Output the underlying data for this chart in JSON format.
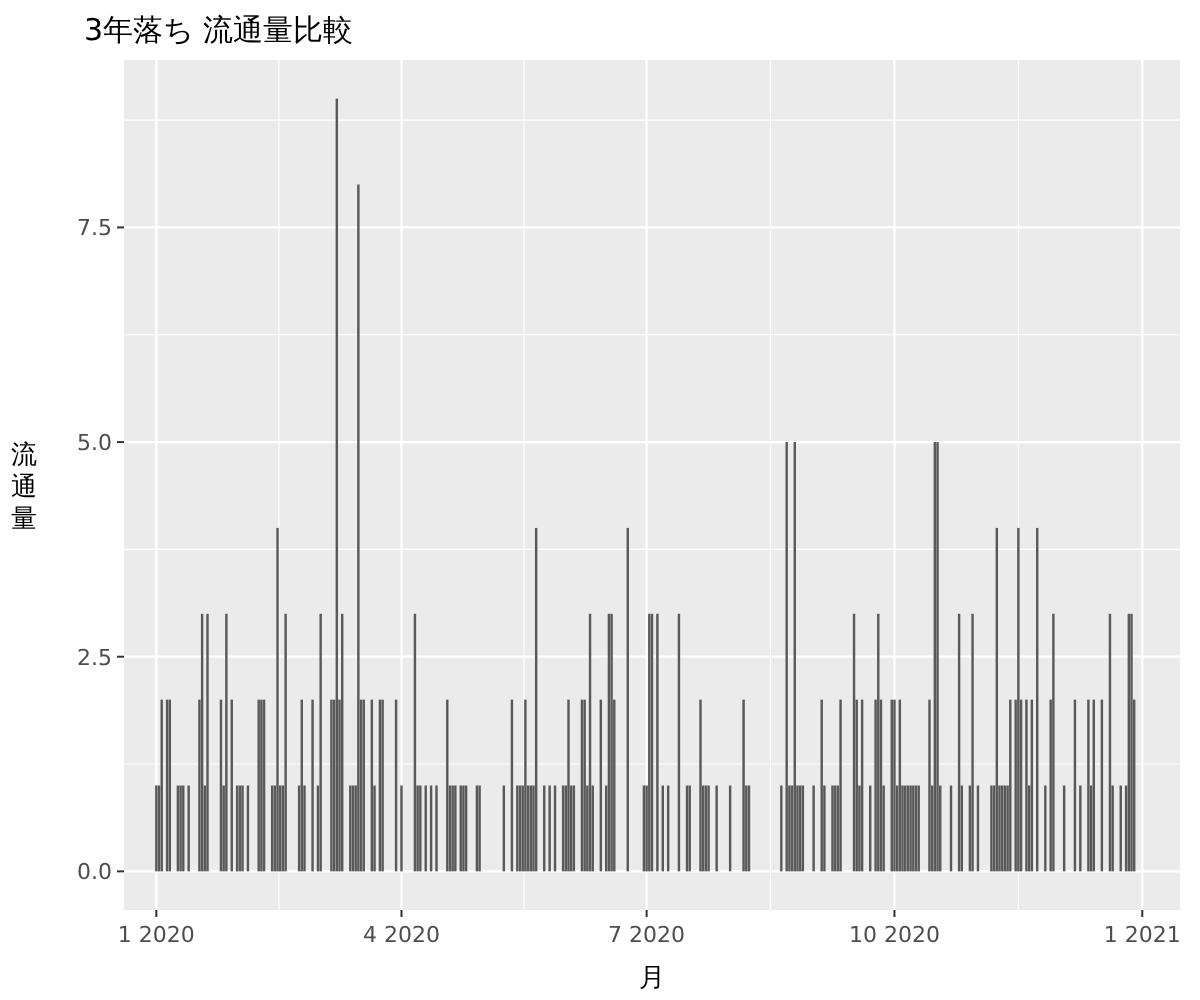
{
  "chart_data": {
    "type": "bar",
    "title": "3年落ち 流通量比較",
    "xlabel": "月",
    "ylabel": "流通量",
    "color": "#595959",
    "x": [
      "2020-01-01",
      "2020-01-02",
      "2020-01-03",
      "2020-01-05",
      "2020-01-06",
      "2020-01-09",
      "2020-01-10",
      "2020-01-11",
      "2020-01-13",
      "2020-01-17",
      "2020-01-18",
      "2020-01-19",
      "2020-01-20",
      "2020-01-25",
      "2020-01-26",
      "2020-01-27",
      "2020-01-29",
      "2020-01-31",
      "2020-02-01",
      "2020-02-02",
      "2020-02-04",
      "2020-02-08",
      "2020-02-09",
      "2020-02-10",
      "2020-02-13",
      "2020-02-14",
      "2020-02-15",
      "2020-02-16",
      "2020-02-17",
      "2020-02-18",
      "2020-02-23",
      "2020-02-24",
      "2020-02-25",
      "2020-02-28",
      "2020-03-01",
      "2020-03-02",
      "2020-03-06",
      "2020-03-07",
      "2020-03-08",
      "2020-03-09",
      "2020-03-10",
      "2020-03-13",
      "2020-03-14",
      "2020-03-15",
      "2020-03-16",
      "2020-03-17",
      "2020-03-18",
      "2020-03-21",
      "2020-03-22",
      "2020-03-24",
      "2020-03-25",
      "2020-03-30",
      "2020-04-01",
      "2020-04-06",
      "2020-04-07",
      "2020-04-08",
      "2020-04-10",
      "2020-04-12",
      "2020-04-14",
      "2020-04-18",
      "2020-04-19",
      "2020-04-20",
      "2020-04-21",
      "2020-04-23",
      "2020-04-24",
      "2020-04-25",
      "2020-04-29",
      "2020-04-30",
      "2020-05-09",
      "2020-05-12",
      "2020-05-14",
      "2020-05-15",
      "2020-05-16",
      "2020-05-17",
      "2020-05-18",
      "2020-05-19",
      "2020-05-20",
      "2020-05-21",
      "2020-05-24",
      "2020-05-26",
      "2020-05-28",
      "2020-05-31",
      "2020-06-01",
      "2020-06-02",
      "2020-06-03",
      "2020-06-04",
      "2020-06-07",
      "2020-06-08",
      "2020-06-09",
      "2020-06-10",
      "2020-06-11",
      "2020-06-14",
      "2020-06-16",
      "2020-06-17",
      "2020-06-18",
      "2020-06-19",
      "2020-06-24",
      "2020-06-30",
      "2020-07-01",
      "2020-07-02",
      "2020-07-03",
      "2020-07-05",
      "2020-07-07",
      "2020-07-09",
      "2020-07-13",
      "2020-07-16",
      "2020-07-17",
      "2020-07-21",
      "2020-07-22",
      "2020-07-23",
      "2020-07-24",
      "2020-07-27",
      "2020-08-01",
      "2020-08-06",
      "2020-08-07",
      "2020-08-08",
      "2020-08-20",
      "2020-08-22",
      "2020-08-23",
      "2020-08-24",
      "2020-08-25",
      "2020-08-26",
      "2020-08-27",
      "2020-08-28",
      "2020-09-01",
      "2020-09-04",
      "2020-09-05",
      "2020-09-08",
      "2020-09-09",
      "2020-09-10",
      "2020-09-11",
      "2020-09-16",
      "2020-09-17",
      "2020-09-18",
      "2020-09-19",
      "2020-09-22",
      "2020-09-24",
      "2020-09-25",
      "2020-09-26",
      "2020-09-27",
      "2020-09-30",
      "2020-10-01",
      "2020-10-02",
      "2020-10-03",
      "2020-10-04",
      "2020-10-05",
      "2020-10-06",
      "2020-10-07",
      "2020-10-08",
      "2020-10-09",
      "2020-10-10",
      "2020-10-14",
      "2020-10-15",
      "2020-10-16",
      "2020-10-17",
      "2020-10-18",
      "2020-10-22",
      "2020-10-25",
      "2020-10-26",
      "2020-10-29",
      "2020-10-30",
      "2020-11-01",
      "2020-11-06",
      "2020-11-07",
      "2020-11-08",
      "2020-11-09",
      "2020-11-10",
      "2020-11-11",
      "2020-11-12",
      "2020-11-13",
      "2020-11-15",
      "2020-11-16",
      "2020-11-17",
      "2020-11-19",
      "2020-11-20",
      "2020-11-21",
      "2020-11-23",
      "2020-11-26",
      "2020-11-28",
      "2020-11-29",
      "2020-12-03",
      "2020-12-07",
      "2020-12-09",
      "2020-12-12",
      "2020-12-13",
      "2020-12-14",
      "2020-12-17",
      "2020-12-20",
      "2020-12-21",
      "2020-12-24",
      "2020-12-26",
      "2020-12-27",
      "2020-12-28",
      "2020-12-29"
    ],
    "values": [
      1,
      1,
      2,
      2,
      2,
      1,
      1,
      1,
      1,
      2,
      3,
      1,
      3,
      2,
      1,
      3,
      2,
      1,
      1,
      1,
      1,
      2,
      2,
      2,
      1,
      1,
      4,
      1,
      1,
      3,
      1,
      2,
      1,
      2,
      1,
      3,
      2,
      2,
      9,
      2,
      3,
      1,
      1,
      1,
      8,
      2,
      2,
      2,
      1,
      2,
      2,
      2,
      1,
      3,
      1,
      1,
      1,
      1,
      1,
      2,
      1,
      1,
      1,
      1,
      1,
      1,
      1,
      1,
      1,
      2,
      1,
      1,
      1,
      2,
      1,
      1,
      1,
      4,
      1,
      1,
      1,
      1,
      1,
      2,
      1,
      1,
      2,
      2,
      1,
      3,
      1,
      2,
      1,
      3,
      3,
      2,
      4,
      1,
      1,
      3,
      3,
      3,
      1,
      1,
      3,
      1,
      1,
      2,
      1,
      1,
      1,
      1,
      1,
      2,
      1,
      1,
      1,
      5,
      1,
      1,
      5,
      1,
      1,
      1,
      1,
      2,
      1,
      1,
      1,
      1,
      2,
      3,
      2,
      1,
      2,
      1,
      2,
      3,
      2,
      1,
      2,
      2,
      1,
      2,
      1,
      1,
      1,
      1,
      1,
      1,
      1,
      2,
      1,
      5,
      5,
      1,
      1,
      3,
      1,
      1,
      3,
      1,
      1,
      1,
      4,
      1,
      1,
      1,
      1,
      2,
      2,
      4,
      2,
      2,
      1,
      2,
      4,
      1,
      2,
      3,
      1,
      2,
      1,
      2,
      1,
      2,
      2,
      3,
      1,
      1,
      1,
      3,
      3,
      2
    ],
    "xlim": [
      "2019-12-20",
      "2021-01-15"
    ],
    "xticks": [
      {
        "value": "2020-01-01",
        "label": "1 2020"
      },
      {
        "value": "2020-04-01",
        "label": "4 2020"
      },
      {
        "value": "2020-07-01",
        "label": "7 2020"
      },
      {
        "value": "2020-10-01",
        "label": "10 2020"
      },
      {
        "value": "2021-01-01",
        "label": "1 2021"
      }
    ],
    "ylim": [
      -0.45,
      9.45
    ],
    "yticks": [
      {
        "value": 0,
        "label": "0.0"
      },
      {
        "value": 2.5,
        "label": "2.5"
      },
      {
        "value": 5,
        "label": "5.0"
      },
      {
        "value": 7.5,
        "label": "7.5"
      }
    ],
    "grid": true
  }
}
